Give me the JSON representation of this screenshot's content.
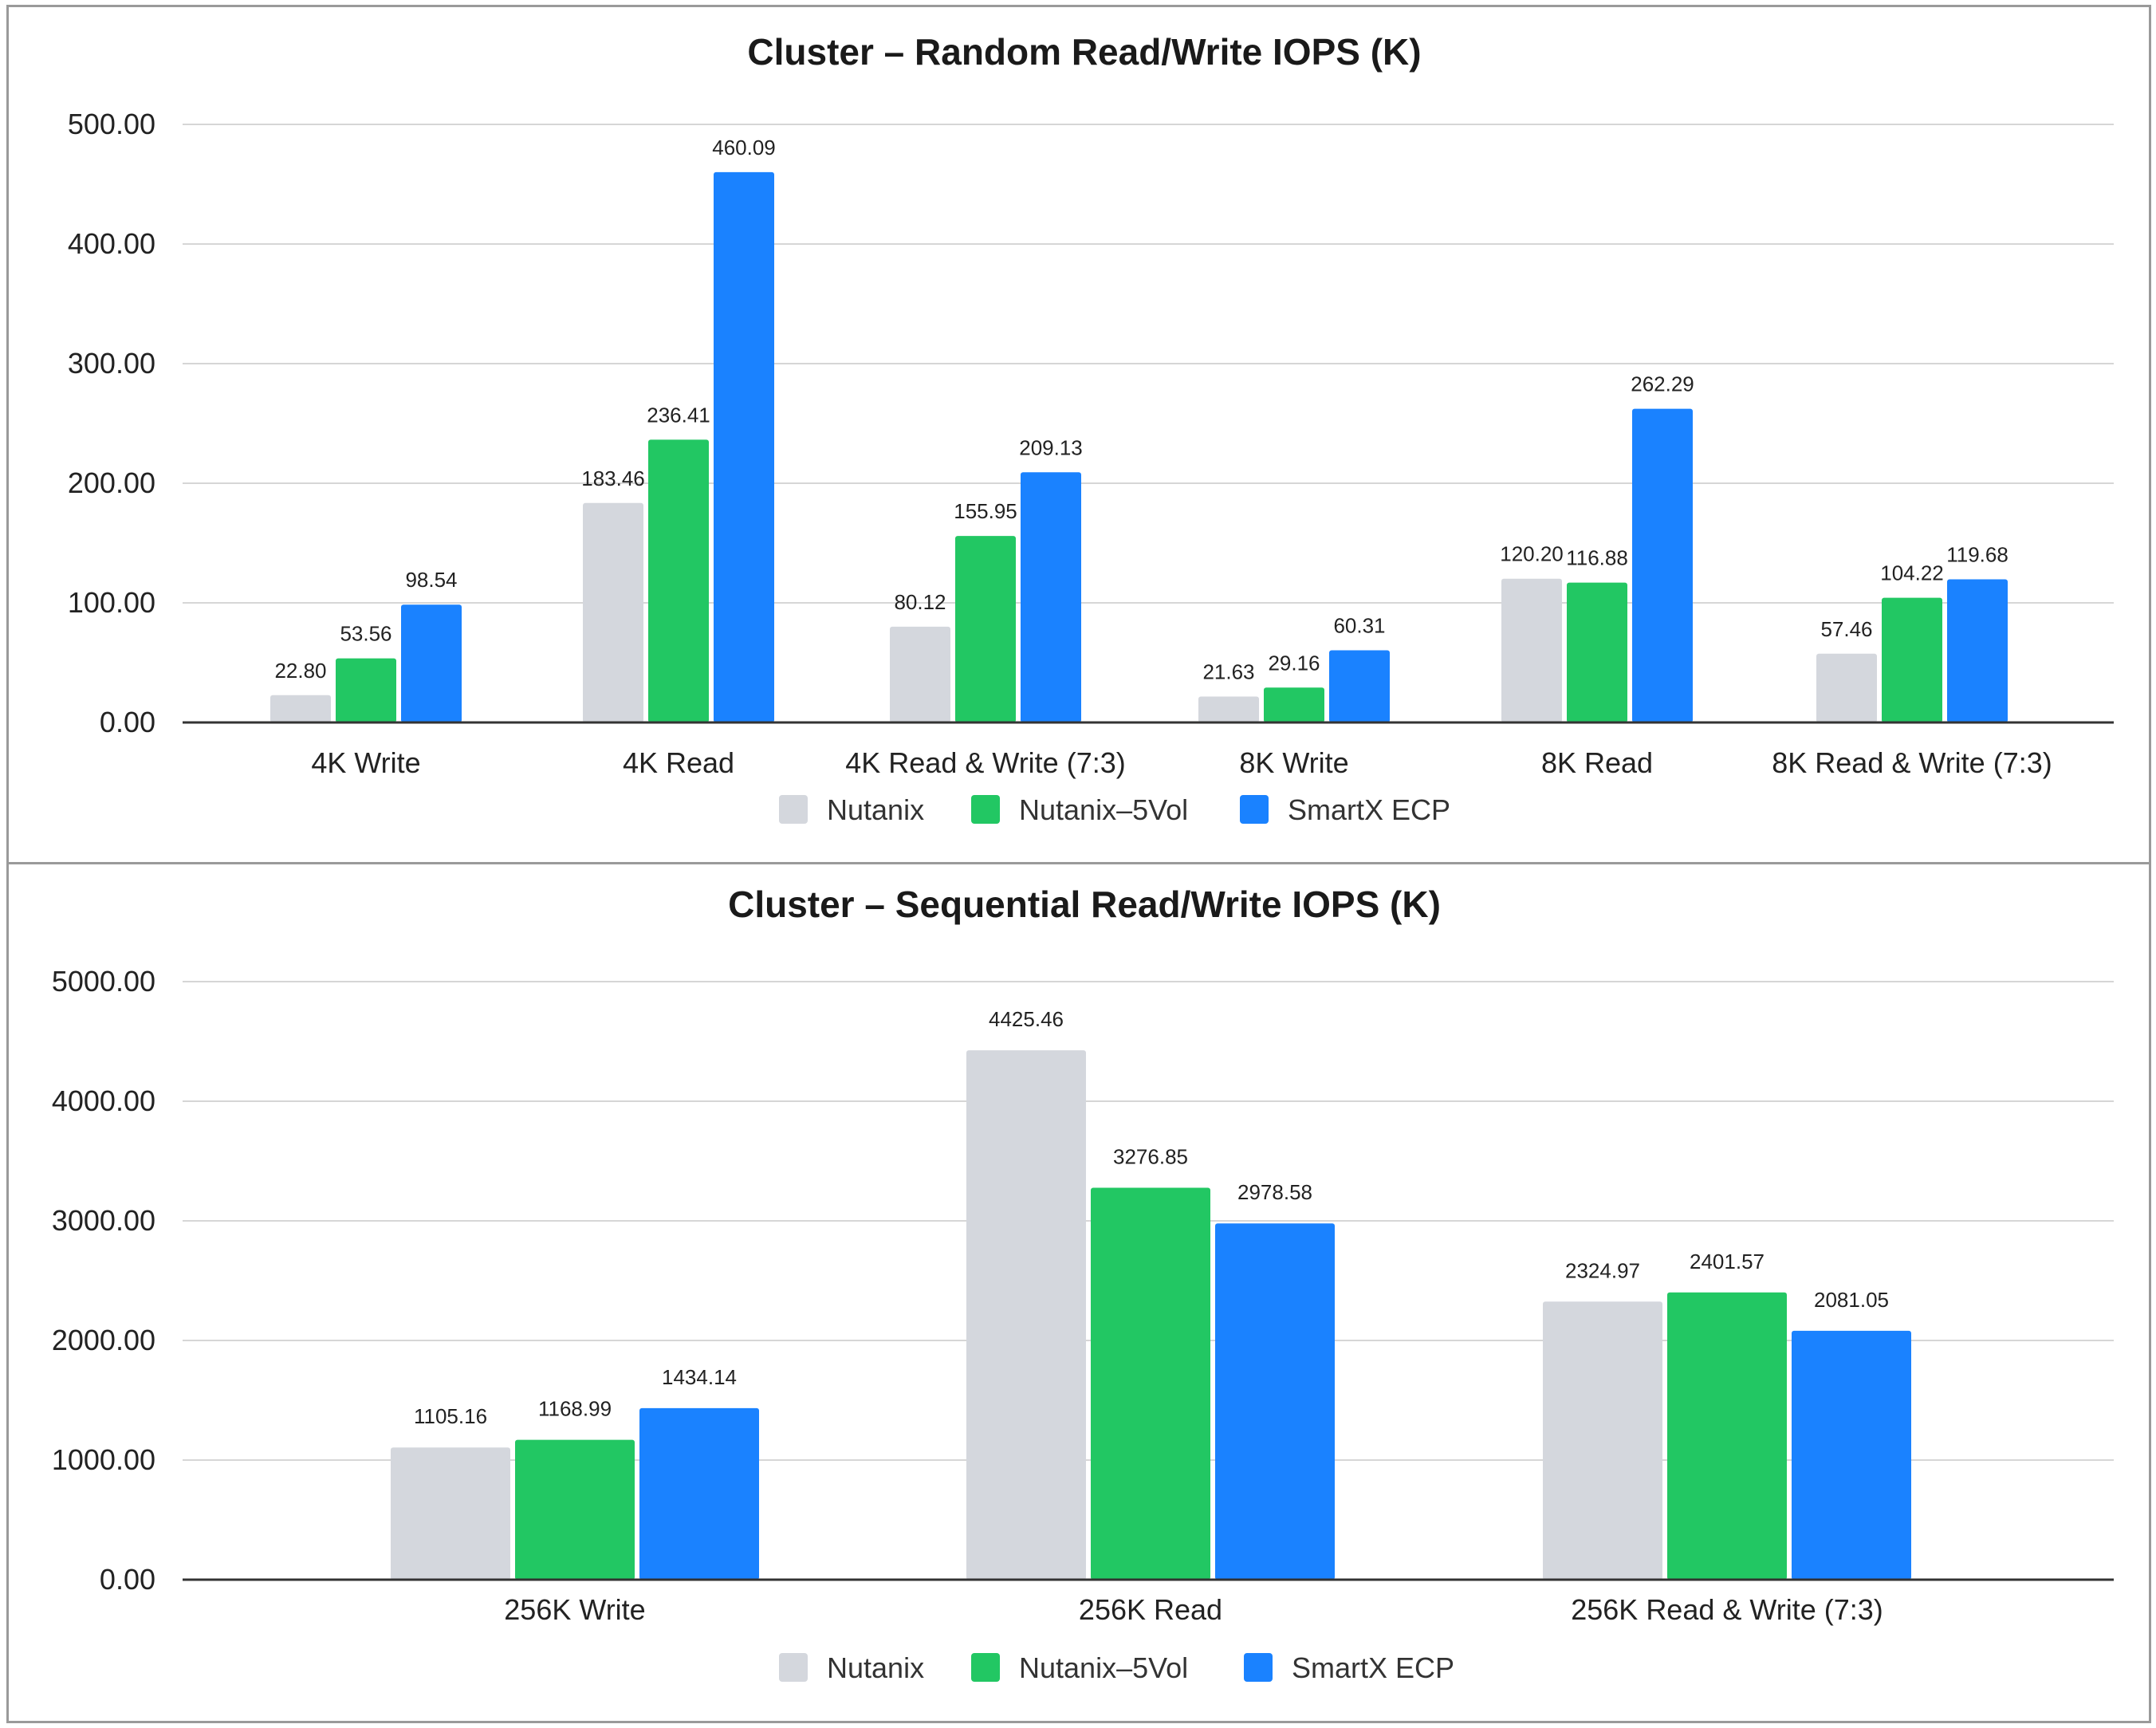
{
  "colors": {
    "Nutanix": "#d4d7dd",
    "Nutanix-5Vol": "#22c763",
    "SmartX ECP": "#1a82ff",
    "grid": "#d6d6d6",
    "axis": "#333333"
  },
  "chart_data": [
    {
      "type": "bar",
      "title": "Cluster – Random Read/Write IOPS (K)",
      "categories": [
        "4K Write",
        "4K Read",
        "4K Read & Write (7:3)",
        "8K Write",
        "8K Read",
        "8K Read & Write (7:3)"
      ],
      "series": [
        {
          "name": "Nutanix",
          "values": [
            22.8,
            183.46,
            80.12,
            21.63,
            120.2,
            57.46
          ],
          "labels": [
            "22.80",
            "183.46",
            "80.12",
            "21.63",
            "120.20",
            "57.46"
          ]
        },
        {
          "name": "Nutanix–5Vol",
          "values": [
            53.56,
            236.41,
            155.95,
            29.16,
            116.88,
            104.22
          ],
          "labels": [
            "53.56",
            "236.41",
            "155.95",
            "29.16",
            "116.88",
            "104.22"
          ]
        },
        {
          "name": "SmartX ECP",
          "values": [
            98.54,
            460.09,
            209.13,
            60.31,
            262.29,
            119.68
          ],
          "labels": [
            "98.54",
            "460.09",
            "209.13",
            "60.31",
            "262.29",
            "119.68"
          ]
        }
      ],
      "yticks": [
        0,
        100,
        200,
        300,
        400,
        500
      ],
      "ytick_labels": [
        "0.00",
        "100.00",
        "200.00",
        "300.00",
        "400.00",
        "500.00"
      ],
      "ylim": [
        0,
        500
      ],
      "grid": true,
      "legend": "bottom-center"
    },
    {
      "type": "bar",
      "title": "Cluster – Sequential Read/Write IOPS (K)",
      "categories": [
        "256K Write",
        "256K Read",
        "256K Read & Write (7:3)"
      ],
      "series": [
        {
          "name": "Nutanix",
          "values": [
            1105.16,
            4425.46,
            2324.97
          ],
          "labels": [
            "1105.16",
            "4425.46",
            "2324.97"
          ]
        },
        {
          "name": "Nutanix–5Vol",
          "values": [
            1168.99,
            3276.85,
            2401.57
          ],
          "labels": [
            "1168.99",
            "3276.85",
            "2401.57"
          ]
        },
        {
          "name": "SmartX ECP",
          "values": [
            1434.14,
            2978.58,
            2081.05
          ],
          "labels": [
            "1434.14",
            "2978.58",
            "2081.05"
          ]
        }
      ],
      "yticks": [
        0,
        1000,
        2000,
        3000,
        4000,
        5000
      ],
      "ytick_labels": [
        "0.00",
        "1000.00",
        "2000.00",
        "3000.00",
        "4000.00",
        "5000.00"
      ],
      "ylim": [
        0,
        5000
      ],
      "grid": true,
      "legend": "bottom-center"
    }
  ]
}
